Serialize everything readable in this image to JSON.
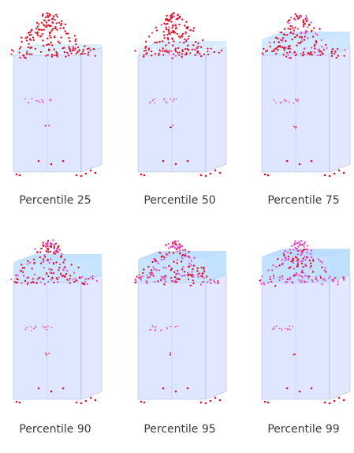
{
  "figure": {
    "panels": [
      {
        "caption": "Percentile 25",
        "fill_level": 0.0
      },
      {
        "caption": "Percentile 50",
        "fill_level": 0.1
      },
      {
        "caption": "Percentile 75",
        "fill_level": 0.4
      },
      {
        "caption": "Percentile 90",
        "fill_level": 0.55
      },
      {
        "caption": "Percentile 95",
        "fill_level": 0.65
      },
      {
        "caption": "Percentile 99",
        "fill_level": 0.72
      }
    ]
  },
  "colors": {
    "box_fill": "#c9d6ff",
    "box_edge": "#a9b9ef",
    "cap_fill": "#9fd0ff",
    "point_red": "#e0102a",
    "point_pink": "#e44fd0"
  }
}
